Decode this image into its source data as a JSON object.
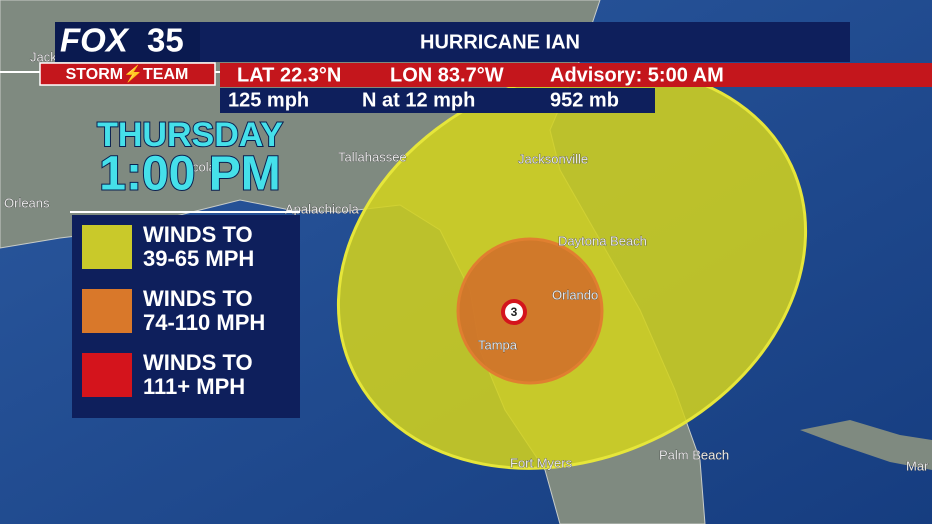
{
  "header": {
    "logo": {
      "network": "FOX",
      "channel": "35",
      "brand": "STORM⚡TEAM"
    },
    "title": "HURRICANE IAN",
    "lat": "LAT 22.3°N",
    "lon": "LON 83.7°W",
    "advisory": "Advisory: 5:00 AM",
    "wind": "125 mph",
    "motion": "N at 12 mph",
    "pressure": "952 mb"
  },
  "time": {
    "day": "THURSDAY",
    "clock": "1:00 PM"
  },
  "legend": [
    {
      "label": "WINDS TO",
      "range": "39-65 MPH",
      "color": "#c9c92a"
    },
    {
      "label": "WINDS TO",
      "range": "74-110 MPH",
      "color": "#d9782a"
    },
    {
      "label": "WINDS TO",
      "range": "111+ MPH",
      "color": "#d4141c"
    }
  ],
  "storm": {
    "category": "3"
  },
  "map_labels": [
    "Jack",
    "Tallahassee",
    "cola",
    "Apalachicola",
    "Orleans",
    "Jacksonville",
    "Daytona Beach",
    "Orlando",
    "Tampa",
    "Fort Myers",
    "Palm Beach",
    "Mar"
  ]
}
